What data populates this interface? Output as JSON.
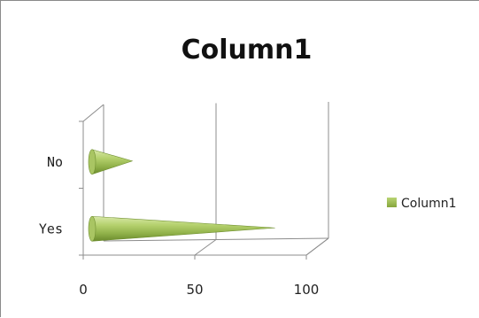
{
  "chart_data": {
    "type": "bar",
    "orientation": "horizontal",
    "style": "3d-cone",
    "title": "Column1",
    "categories": [
      "No",
      "Yes"
    ],
    "series": [
      {
        "name": "Column1",
        "values": [
          18,
          82
        ],
        "color": "#9bbb59"
      }
    ],
    "xlim": [
      0,
      100
    ],
    "xticks": [
      "0",
      "50",
      "100"
    ],
    "grid": true,
    "legend": "right"
  }
}
